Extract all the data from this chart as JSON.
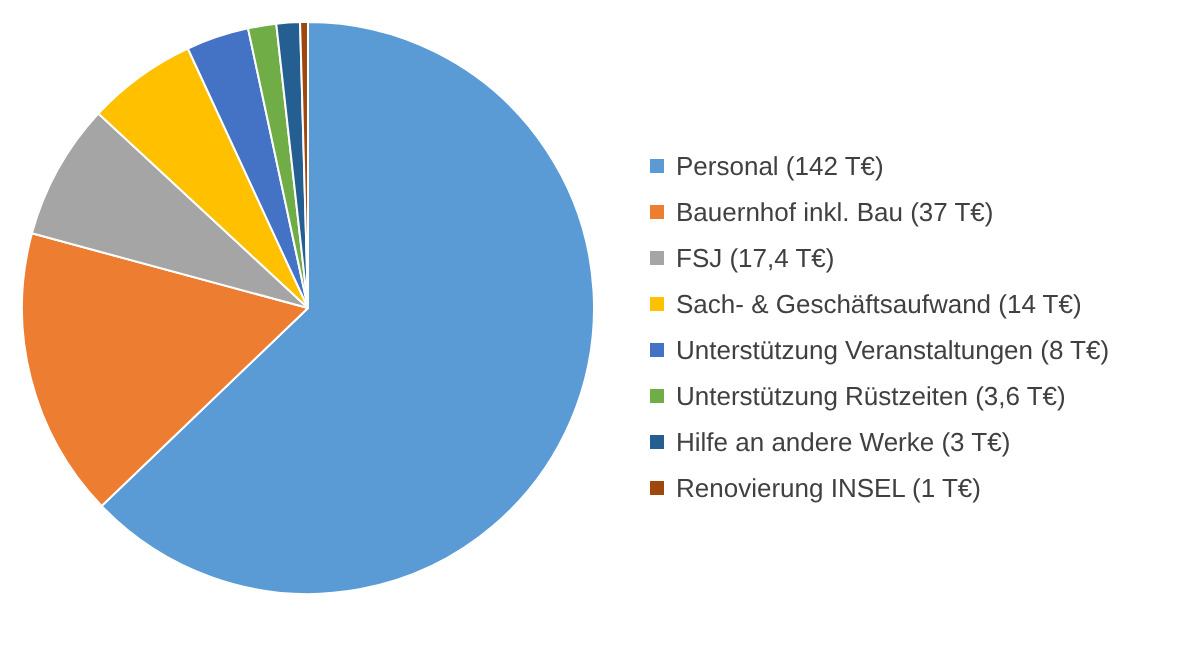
{
  "chart_data": {
    "type": "pie",
    "categories": [
      "Personal (142 T€)",
      "Bauernhof inkl. Bau (37 T€)",
      "FSJ (17,4 T€)",
      "Sach- & Geschäftsaufwand (14 T€)",
      "Unterstützung Veranstaltungen (8 T€)",
      "Unterstützung Rüstzeiten (3,6 T€)",
      "Hilfe an andere Werke (3 T€)",
      "Renovierung INSEL (1 T€)"
    ],
    "values": [
      142,
      37,
      17.4,
      14,
      8,
      3.6,
      3,
      1
    ],
    "colors": [
      "#5b9bd5",
      "#ed7d31",
      "#a5a5a5",
      "#ffc000",
      "#4472c4",
      "#70ad47",
      "#255e91",
      "#9e480e"
    ],
    "legend": "right"
  }
}
